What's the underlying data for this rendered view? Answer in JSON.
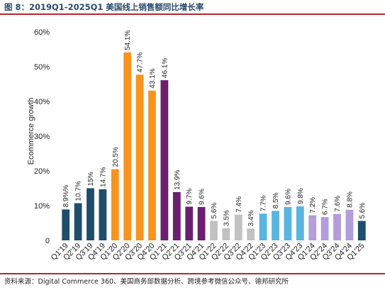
{
  "figure": {
    "title": "图 8：2019Q1-2025Q1 美国线上销售额同比增长率",
    "source": "资料来源：Digital Commerce 360、美国商务部数据分析、跨境参考微信公众号、德邦研究所"
  },
  "chart_data": {
    "type": "bar",
    "ylabel": "Ecommerce growth",
    "ylim": [
      0,
      60
    ],
    "yticks": [
      "0",
      "10%",
      "20%",
      "30%",
      "40%",
      "50%",
      "60%"
    ],
    "grid": false,
    "categories": [
      "Q1'19",
      "Q2'19",
      "Q3'19",
      "Q4'19",
      "Q1'20",
      "Q2'20",
      "Q3'20",
      "Q4'20",
      "Q1'21",
      "Q2'21",
      "Q3'21",
      "Q4'21",
      "Q1'22",
      "Q2'22",
      "Q3'22",
      "Q4'22",
      "Q1'23",
      "Q2'23",
      "Q3'23",
      "Q4'23",
      "Q1'24",
      "Q2'24",
      "Q3'24",
      "Q4'24",
      "Q1'25"
    ],
    "values": [
      8.9,
      10.7,
      15,
      14.7,
      20.5,
      54.1,
      47.7,
      43.1,
      46.1,
      13.9,
      9.7,
      9.6,
      5.6,
      3.5,
      7.4,
      3.4,
      7.7,
      8.5,
      9.6,
      9.8,
      7.2,
      6.7,
      7.6,
      8.8,
      5.6
    ],
    "labels": [
      "8.9%%",
      "10.7%",
      "15%",
      "14.7%",
      "20.5%",
      "54.1%",
      "47.7%",
      "43.1%",
      "46.1%",
      "13.9%",
      "9.7%",
      "9.6%",
      "5.6%",
      "3.5%",
      "7.4%",
      "3.4%",
      "7.7%",
      "8.5%",
      "9.6%",
      "9.8%",
      "7.2%",
      "6.7%",
      "7.6%",
      "8.8%",
      "5.6%"
    ],
    "colors": [
      "#1f4e6b",
      "#1f4e6b",
      "#1f4e6b",
      "#1f4e6b",
      "#f7931e",
      "#f7931e",
      "#f7931e",
      "#f7931e",
      "#6b1f6e",
      "#6b1f6e",
      "#6b1f6e",
      "#6b1f6e",
      "#c2c2c2",
      "#c2c2c2",
      "#c2c2c2",
      "#c2c2c2",
      "#5ab4e0",
      "#5ab4e0",
      "#5ab4e0",
      "#5ab4e0",
      "#b39ddb",
      "#b39ddb",
      "#b39ddb",
      "#b39ddb",
      "#1f4e6b"
    ]
  }
}
